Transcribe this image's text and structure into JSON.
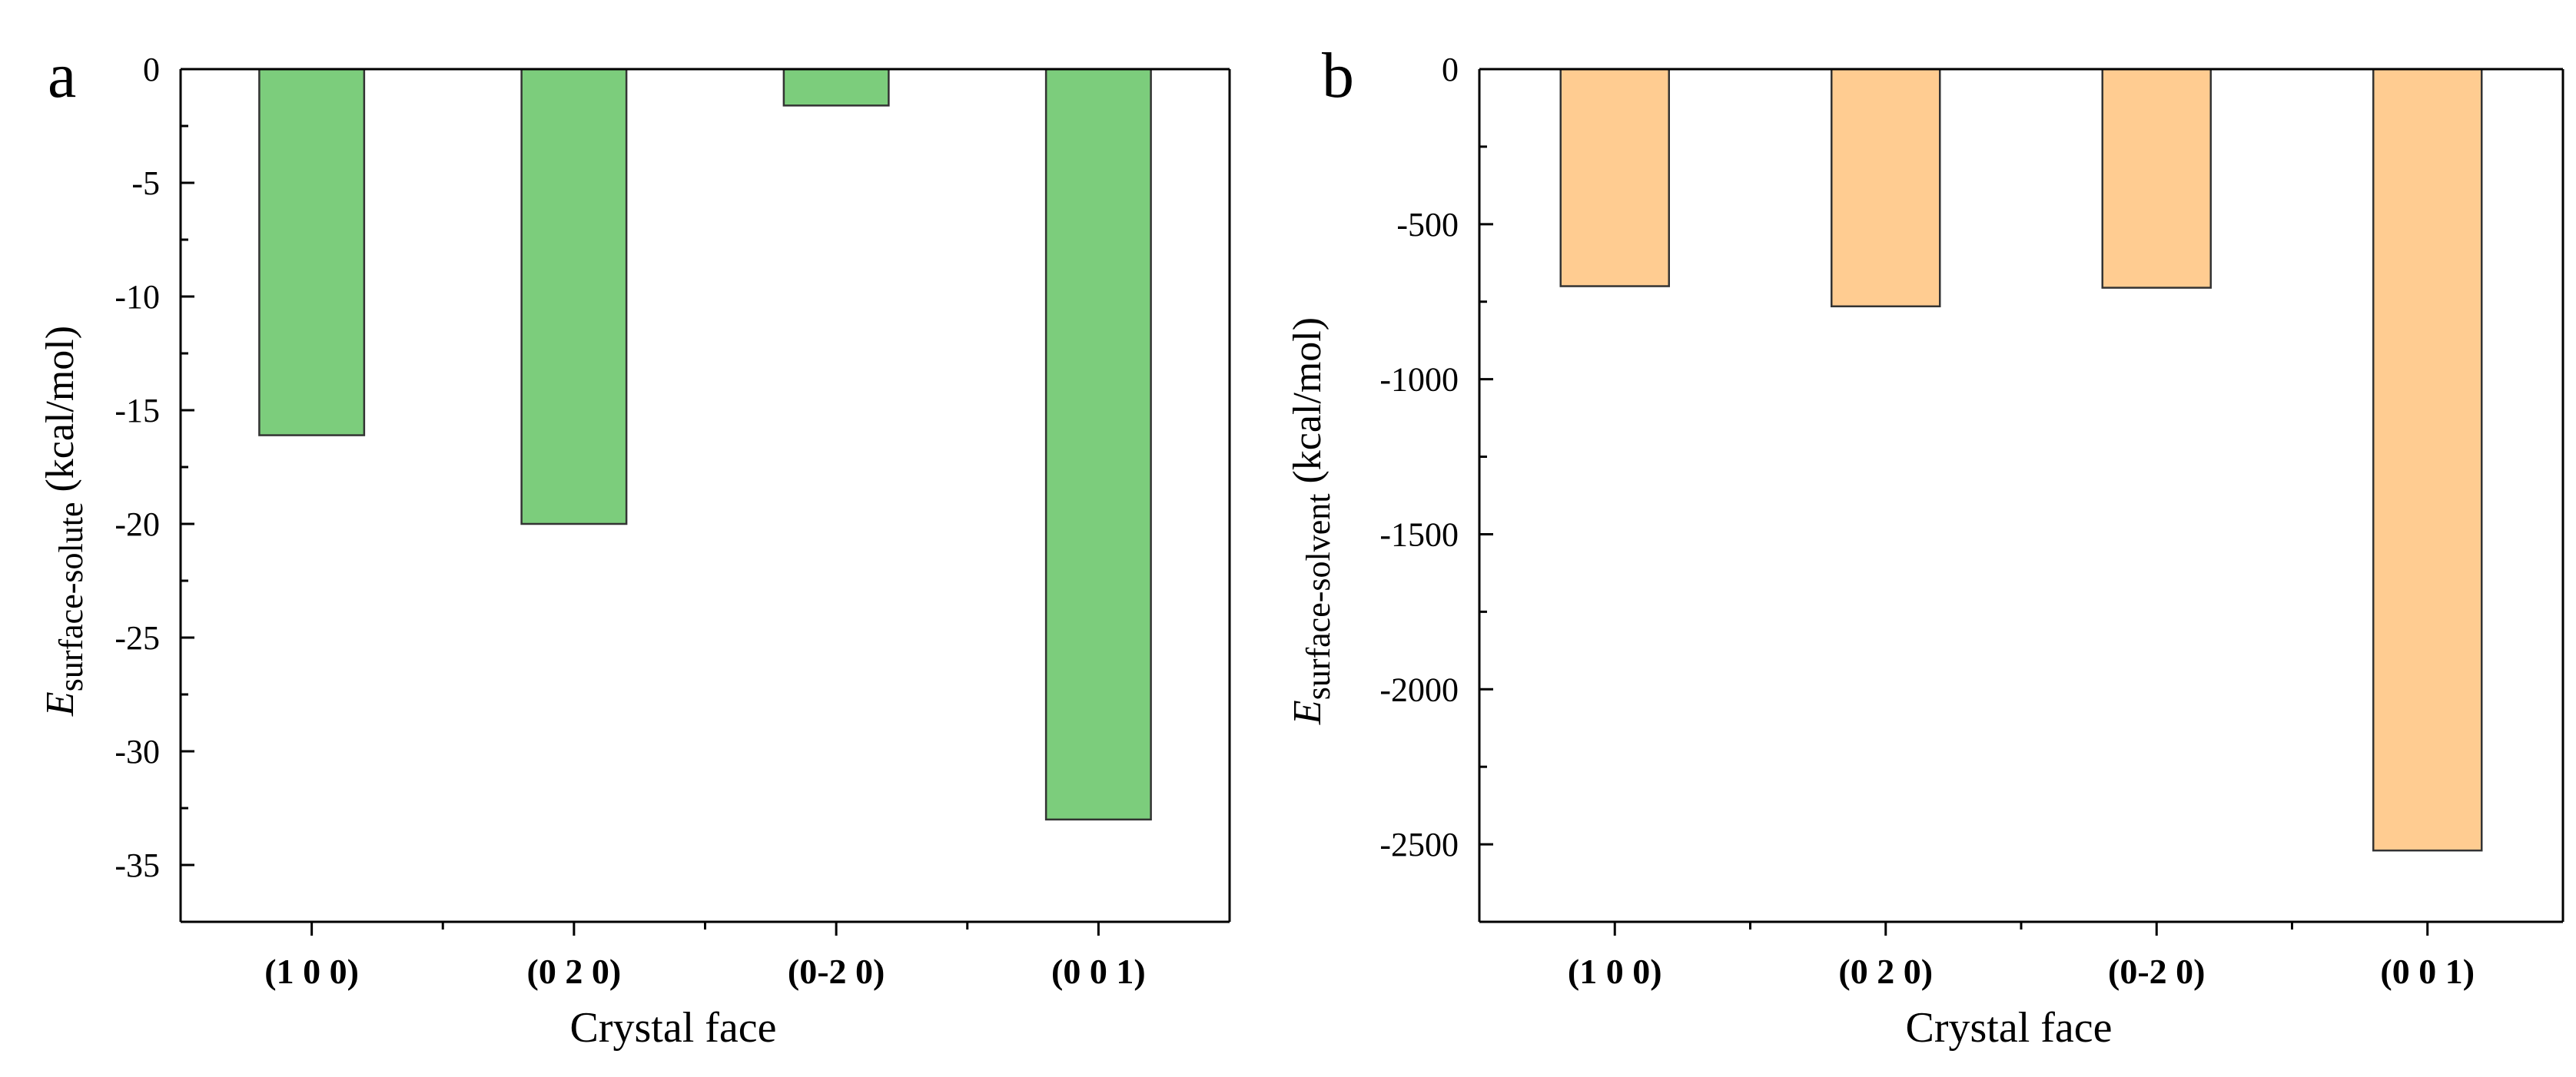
{
  "figure": {
    "panels": [
      "a",
      "b"
    ]
  },
  "chart_data": [
    {
      "type": "bar",
      "panel_label": "a",
      "categories": [
        "(1 0 0)",
        "(0 2 0)",
        "(0-2 0)",
        "(0 0 1)"
      ],
      "values": [
        -16.1,
        -20.0,
        -1.6,
        -33.0
      ],
      "ylim": [
        -37.5,
        0
      ],
      "yticks": [
        0,
        -5,
        -10,
        -15,
        -20,
        -25,
        -30,
        -35
      ],
      "ytick_labels": [
        "0",
        "-5",
        "-10",
        "-15",
        "-20",
        "-25",
        "-30",
        "-35"
      ],
      "xlabel": "Crystal face",
      "ylabel": {
        "symbol": "E",
        "subscript": "surface-solute",
        "unit": " (kcal/mol)"
      },
      "bar_color": "#7ccd7c",
      "edge_color": "#333333"
    },
    {
      "type": "bar",
      "panel_label": "b",
      "categories": [
        "(1 0 0)",
        "(0 2 0)",
        "(0-2 0)",
        "(0 0 1)"
      ],
      "values": [
        -700,
        -765,
        -705,
        -2520
      ],
      "ylim": [
        -2750,
        0
      ],
      "yticks": [
        0,
        -500,
        -1000,
        -1500,
        -2000,
        -2500
      ],
      "ytick_labels": [
        "0",
        "-500",
        "-1000",
        "-1500",
        "-2000",
        "-2500"
      ],
      "xlabel": "Crystal face",
      "ylabel": {
        "symbol": "E",
        "subscript": "surface-solvent",
        "unit": " (kcal/mol)"
      },
      "bar_color": "#ffcc91",
      "edge_color": "#333333"
    }
  ]
}
